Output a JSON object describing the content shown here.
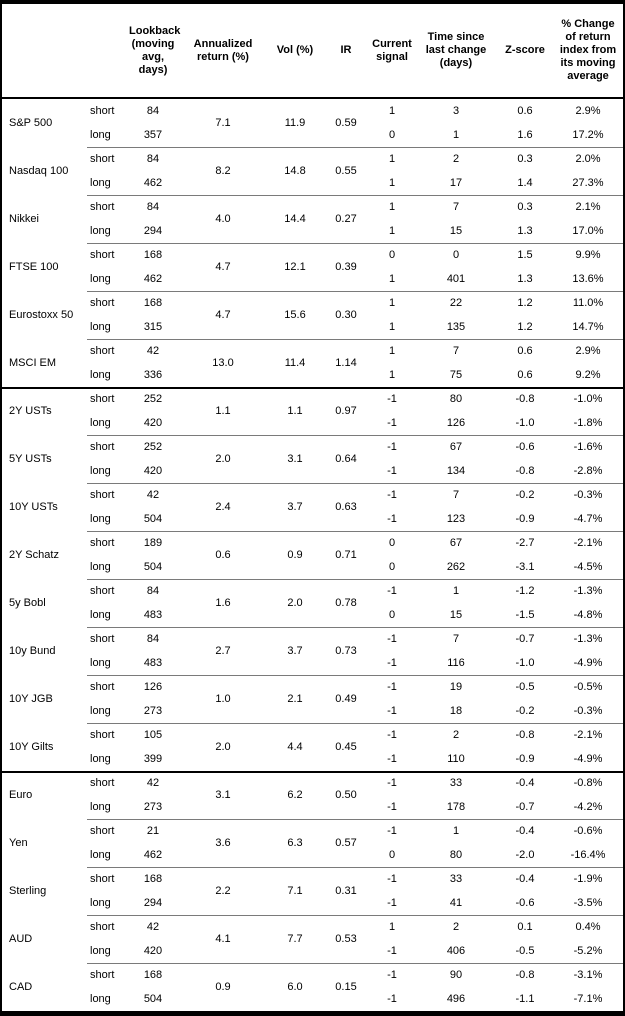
{
  "table": {
    "labels": {
      "short": "short",
      "long": "long"
    },
    "columns": {
      "asset": "",
      "horizon": "",
      "lookback": "Lookback (moving avg, days)",
      "annualized_return": "Annualized return (%)",
      "vol": "Vol (%)",
      "ir": "IR",
      "current_signal": "Current signal",
      "time_since_change": "Time since last change (days)",
      "z_score": "Z-score",
      "pct_change": "% Change of return index from its moving average"
    },
    "rows": [
      {
        "name": "S&P 500",
        "group_start": false,
        "ann": "7.1",
        "vol": "11.9",
        "ir": "0.59",
        "short": {
          "lookback": "84",
          "signal": "1",
          "time": "3",
          "z": "0.6",
          "pct": "2.9%"
        },
        "long": {
          "lookback": "357",
          "signal": "0",
          "time": "1",
          "z": "1.6",
          "pct": "17.2%"
        }
      },
      {
        "name": "Nasdaq 100",
        "group_start": false,
        "ann": "8.2",
        "vol": "14.8",
        "ir": "0.55",
        "short": {
          "lookback": "84",
          "signal": "1",
          "time": "2",
          "z": "0.3",
          "pct": "2.0%"
        },
        "long": {
          "lookback": "462",
          "signal": "1",
          "time": "17",
          "z": "1.4",
          "pct": "27.3%"
        }
      },
      {
        "name": "Nikkei",
        "group_start": false,
        "ann": "4.0",
        "vol": "14.4",
        "ir": "0.27",
        "short": {
          "lookback": "84",
          "signal": "1",
          "time": "7",
          "z": "0.3",
          "pct": "2.1%"
        },
        "long": {
          "lookback": "294",
          "signal": "1",
          "time": "15",
          "z": "1.3",
          "pct": "17.0%"
        }
      },
      {
        "name": "FTSE 100",
        "group_start": false,
        "ann": "4.7",
        "vol": "12.1",
        "ir": "0.39",
        "short": {
          "lookback": "168",
          "signal": "0",
          "time": "0",
          "z": "1.5",
          "pct": "9.9%"
        },
        "long": {
          "lookback": "462",
          "signal": "1",
          "time": "401",
          "z": "1.3",
          "pct": "13.6%"
        }
      },
      {
        "name": "Eurostoxx 50",
        "group_start": false,
        "ann": "4.7",
        "vol": "15.6",
        "ir": "0.30",
        "short": {
          "lookback": "168",
          "signal": "1",
          "time": "22",
          "z": "1.2",
          "pct": "11.0%"
        },
        "long": {
          "lookback": "315",
          "signal": "1",
          "time": "135",
          "z": "1.2",
          "pct": "14.7%"
        }
      },
      {
        "name": "MSCI EM",
        "group_start": false,
        "ann": "13.0",
        "vol": "11.4",
        "ir": "1.14",
        "short": {
          "lookback": "42",
          "signal": "1",
          "time": "7",
          "z": "0.6",
          "pct": "2.9%"
        },
        "long": {
          "lookback": "336",
          "signal": "1",
          "time": "75",
          "z": "0.6",
          "pct": "9.2%"
        }
      },
      {
        "name": "2Y USTs",
        "group_start": true,
        "ann": "1.1",
        "vol": "1.1",
        "ir": "0.97",
        "short": {
          "lookback": "252",
          "signal": "-1",
          "time": "80",
          "z": "-0.8",
          "pct": "-1.0%"
        },
        "long": {
          "lookback": "420",
          "signal": "-1",
          "time": "126",
          "z": "-1.0",
          "pct": "-1.8%"
        }
      },
      {
        "name": "5Y USTs",
        "group_start": false,
        "ann": "2.0",
        "vol": "3.1",
        "ir": "0.64",
        "short": {
          "lookback": "252",
          "signal": "-1",
          "time": "67",
          "z": "-0.6",
          "pct": "-1.6%"
        },
        "long": {
          "lookback": "420",
          "signal": "-1",
          "time": "134",
          "z": "-0.8",
          "pct": "-2.8%"
        }
      },
      {
        "name": "10Y USTs",
        "group_start": false,
        "ann": "2.4",
        "vol": "3.7",
        "ir": "0.63",
        "short": {
          "lookback": "42",
          "signal": "-1",
          "time": "7",
          "z": "-0.2",
          "pct": "-0.3%"
        },
        "long": {
          "lookback": "504",
          "signal": "-1",
          "time": "123",
          "z": "-0.9",
          "pct": "-4.7%"
        }
      },
      {
        "name": "2Y Schatz",
        "group_start": false,
        "ann": "0.6",
        "vol": "0.9",
        "ir": "0.71",
        "short": {
          "lookback": "189",
          "signal": "0",
          "time": "67",
          "z": "-2.7",
          "pct": "-2.1%"
        },
        "long": {
          "lookback": "504",
          "signal": "0",
          "time": "262",
          "z": "-3.1",
          "pct": "-4.5%"
        }
      },
      {
        "name": "5y Bobl",
        "group_start": false,
        "ann": "1.6",
        "vol": "2.0",
        "ir": "0.78",
        "short": {
          "lookback": "84",
          "signal": "-1",
          "time": "1",
          "z": "-1.2",
          "pct": "-1.3%"
        },
        "long": {
          "lookback": "483",
          "signal": "0",
          "time": "15",
          "z": "-1.5",
          "pct": "-4.8%"
        }
      },
      {
        "name": "10y Bund",
        "group_start": false,
        "ann": "2.7",
        "vol": "3.7",
        "ir": "0.73",
        "short": {
          "lookback": "84",
          "signal": "-1",
          "time": "7",
          "z": "-0.7",
          "pct": "-1.3%"
        },
        "long": {
          "lookback": "483",
          "signal": "-1",
          "time": "116",
          "z": "-1.0",
          "pct": "-4.9%"
        }
      },
      {
        "name": "10Y JGB",
        "group_start": false,
        "ann": "1.0",
        "vol": "2.1",
        "ir": "0.49",
        "short": {
          "lookback": "126",
          "signal": "-1",
          "time": "19",
          "z": "-0.5",
          "pct": "-0.5%"
        },
        "long": {
          "lookback": "273",
          "signal": "-1",
          "time": "18",
          "z": "-0.2",
          "pct": "-0.3%"
        }
      },
      {
        "name": "10Y Gilts",
        "group_start": false,
        "ann": "2.0",
        "vol": "4.4",
        "ir": "0.45",
        "short": {
          "lookback": "105",
          "signal": "-1",
          "time": "2",
          "z": "-0.8",
          "pct": "-2.1%"
        },
        "long": {
          "lookback": "399",
          "signal": "-1",
          "time": "110",
          "z": "-0.9",
          "pct": "-4.9%"
        }
      },
      {
        "name": "Euro",
        "group_start": true,
        "ann": "3.1",
        "vol": "6.2",
        "ir": "0.50",
        "short": {
          "lookback": "42",
          "signal": "-1",
          "time": "33",
          "z": "-0.4",
          "pct": "-0.8%"
        },
        "long": {
          "lookback": "273",
          "signal": "-1",
          "time": "178",
          "z": "-0.7",
          "pct": "-4.2%"
        }
      },
      {
        "name": "Yen",
        "group_start": false,
        "ann": "3.6",
        "vol": "6.3",
        "ir": "0.57",
        "short": {
          "lookback": "21",
          "signal": "-1",
          "time": "1",
          "z": "-0.4",
          "pct": "-0.6%"
        },
        "long": {
          "lookback": "462",
          "signal": "0",
          "time": "80",
          "z": "-2.0",
          "pct": "-16.4%"
        }
      },
      {
        "name": "Sterling",
        "group_start": false,
        "ann": "2.2",
        "vol": "7.1",
        "ir": "0.31",
        "short": {
          "lookback": "168",
          "signal": "-1",
          "time": "33",
          "z": "-0.4",
          "pct": "-1.9%"
        },
        "long": {
          "lookback": "294",
          "signal": "-1",
          "time": "41",
          "z": "-0.6",
          "pct": "-3.5%"
        }
      },
      {
        "name": "AUD",
        "group_start": false,
        "ann": "4.1",
        "vol": "7.7",
        "ir": "0.53",
        "short": {
          "lookback": "42",
          "signal": "1",
          "time": "2",
          "z": "0.1",
          "pct": "0.4%"
        },
        "long": {
          "lookback": "420",
          "signal": "-1",
          "time": "406",
          "z": "-0.5",
          "pct": "-5.2%"
        }
      },
      {
        "name": "CAD",
        "group_start": false,
        "ann": "0.9",
        "vol": "6.0",
        "ir": "0.15",
        "short": {
          "lookback": "168",
          "signal": "-1",
          "time": "90",
          "z": "-0.8",
          "pct": "-3.1%"
        },
        "long": {
          "lookback": "504",
          "signal": "-1",
          "time": "496",
          "z": "-1.1",
          "pct": "-7.1%"
        }
      }
    ]
  }
}
